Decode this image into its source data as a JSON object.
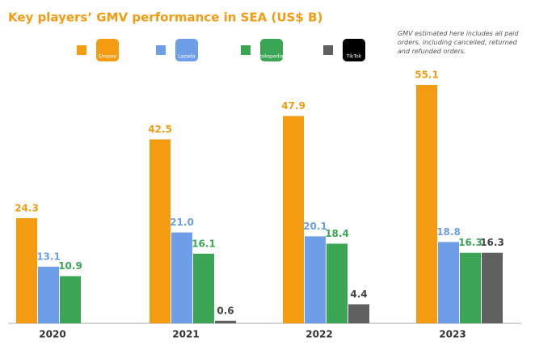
{
  "chart_data": {
    "type": "bar",
    "title": "Key players’ GMV performance in SEA (US$ B)",
    "note": "GMV estimated here includes all paid orders, including cancelled, returned and refunded orders.",
    "categories": [
      "2020",
      "2021",
      "2022",
      "2023"
    ],
    "series": [
      {
        "name": "Shopee",
        "color": "#f39c12",
        "values": [
          24.3,
          42.5,
          47.9,
          55.1
        ]
      },
      {
        "name": "Lazada",
        "color": "#6f9ee8",
        "values": [
          13.1,
          21.0,
          20.1,
          18.8
        ],
        "value_labels": [
          "13.1",
          "21.0",
          "20.1",
          "18.8"
        ]
      },
      {
        "name": "tokopedia",
        "color": "#3aa655",
        "values": [
          10.9,
          16.1,
          18.4,
          16.3
        ]
      },
      {
        "name": "TikTok",
        "color": "#606060",
        "values": [
          null,
          0.6,
          4.4,
          16.3
        ]
      }
    ]
  }
}
